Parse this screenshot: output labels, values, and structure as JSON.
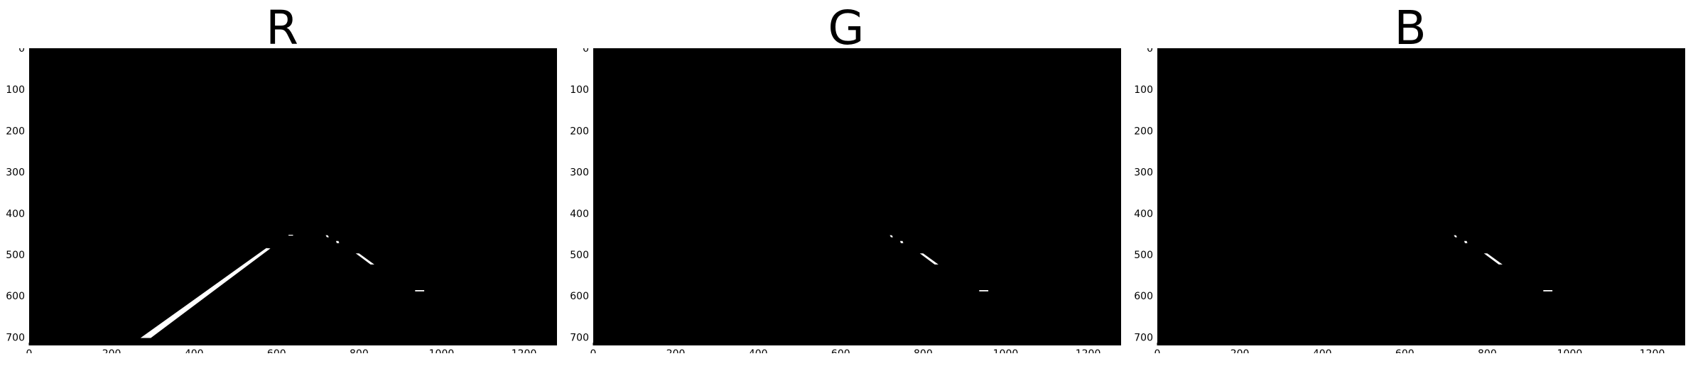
{
  "panels": [
    {
      "title": "R",
      "key": "r"
    },
    {
      "title": "G",
      "key": "g"
    },
    {
      "title": "B",
      "key": "b"
    }
  ],
  "axes": {
    "xticks": [
      0,
      200,
      400,
      600,
      800,
      1000,
      1200
    ],
    "yticks": [
      0,
      100,
      200,
      300,
      400,
      500,
      600,
      700
    ],
    "xlim": [
      0,
      1280
    ],
    "ylim": [
      0,
      720
    ]
  },
  "colors": {
    "background": "#000000",
    "mask": "#ffffff"
  },
  "segments": {
    "r": [
      {
        "points": [
          [
            270,
            702
          ],
          [
            295,
            702
          ],
          [
            585,
            485
          ],
          [
            575,
            484
          ]
        ]
      },
      {
        "points": [
          [
            629,
            452
          ],
          [
            640,
            452
          ],
          [
            640,
            454
          ],
          [
            629,
            454
          ]
        ]
      },
      {
        "points": [
          [
            719,
            453
          ],
          [
            724,
            453
          ],
          [
            727,
            458
          ],
          [
            722,
            458
          ]
        ]
      },
      {
        "points": [
          [
            744,
            467
          ],
          [
            750,
            467
          ],
          [
            752,
            472
          ],
          [
            746,
            472
          ]
        ]
      },
      {
        "points": [
          [
            792,
            497
          ],
          [
            800,
            497
          ],
          [
            837,
            524
          ],
          [
            828,
            524
          ]
        ]
      },
      {
        "points": [
          [
            936,
            586
          ],
          [
            958,
            586
          ],
          [
            958,
            589
          ],
          [
            936,
            589
          ]
        ]
      }
    ],
    "g": [
      {
        "points": [
          [
            719,
            453
          ],
          [
            724,
            453
          ],
          [
            727,
            458
          ],
          [
            722,
            458
          ]
        ]
      },
      {
        "points": [
          [
            744,
            467
          ],
          [
            750,
            467
          ],
          [
            752,
            472
          ],
          [
            746,
            472
          ]
        ]
      },
      {
        "points": [
          [
            792,
            497
          ],
          [
            800,
            497
          ],
          [
            837,
            524
          ],
          [
            828,
            524
          ]
        ]
      },
      {
        "points": [
          [
            936,
            586
          ],
          [
            958,
            586
          ],
          [
            958,
            589
          ],
          [
            936,
            589
          ]
        ]
      }
    ],
    "b": [
      {
        "points": [
          [
            719,
            453
          ],
          [
            724,
            453
          ],
          [
            727,
            458
          ],
          [
            722,
            458
          ]
        ]
      },
      {
        "points": [
          [
            744,
            467
          ],
          [
            750,
            467
          ],
          [
            752,
            472
          ],
          [
            746,
            472
          ]
        ]
      },
      {
        "points": [
          [
            792,
            497
          ],
          [
            800,
            497
          ],
          [
            837,
            524
          ],
          [
            828,
            524
          ]
        ]
      },
      {
        "points": [
          [
            936,
            586
          ],
          [
            958,
            586
          ],
          [
            958,
            589
          ],
          [
            936,
            589
          ]
        ]
      }
    ]
  }
}
